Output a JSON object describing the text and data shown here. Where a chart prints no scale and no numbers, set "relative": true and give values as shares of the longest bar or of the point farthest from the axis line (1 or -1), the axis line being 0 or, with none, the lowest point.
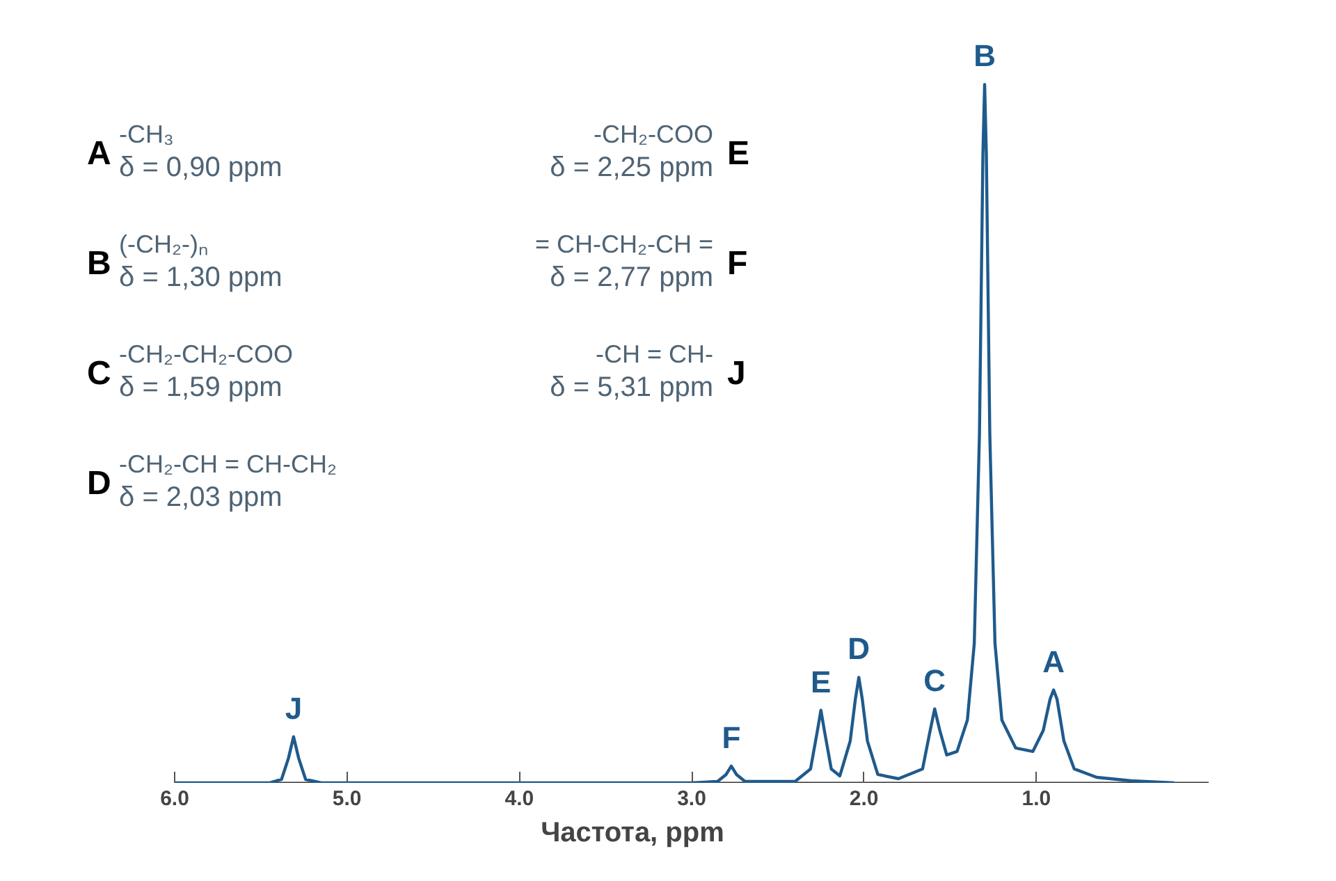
{
  "chart_data": {
    "type": "line",
    "relative": true,
    "xlabel": "Частота, ppm",
    "xlim": [
      6.0,
      0.0
    ],
    "xticks": [
      {
        "value": 6,
        "label": "6.0"
      },
      {
        "value": 5,
        "label": "5.0"
      },
      {
        "value": 4,
        "label": "4.0"
      },
      {
        "value": 3,
        "label": "3.0"
      },
      {
        "value": 2,
        "label": "2.0"
      },
      {
        "value": 1,
        "label": "1.0"
      }
    ],
    "grid": false,
    "marker": "none",
    "line_style": "solid",
    "series": [
      {
        "color": "#1f5a8c",
        "x": [
          6.0,
          5.45,
          5.38,
          5.34,
          5.31,
          5.28,
          5.24,
          5.15,
          3.0,
          2.85,
          2.8,
          2.77,
          2.74,
          2.69,
          2.4,
          2.31,
          2.27,
          2.25,
          2.23,
          2.19,
          2.14,
          2.08,
          2.05,
          2.03,
          2.01,
          1.98,
          1.92,
          1.8,
          1.66,
          1.62,
          1.59,
          1.56,
          1.52,
          1.46,
          1.4,
          1.36,
          1.33,
          1.31,
          1.3,
          1.29,
          1.27,
          1.24,
          1.2,
          1.12,
          1.02,
          0.96,
          0.92,
          0.9,
          0.88,
          0.84,
          0.78,
          0.65,
          0.45,
          0.2
        ],
        "values": [
          0,
          0,
          0.005,
          0.035,
          0.066,
          0.035,
          0.005,
          0,
          0,
          0.002,
          0.012,
          0.024,
          0.012,
          0.002,
          0.002,
          0.02,
          0.075,
          0.104,
          0.075,
          0.02,
          0.01,
          0.06,
          0.12,
          0.151,
          0.12,
          0.06,
          0.012,
          0.006,
          0.02,
          0.07,
          0.106,
          0.075,
          0.04,
          0.045,
          0.09,
          0.2,
          0.5,
          0.9,
          1.0,
          0.9,
          0.5,
          0.2,
          0.09,
          0.05,
          0.045,
          0.075,
          0.12,
          0.133,
          0.12,
          0.06,
          0.02,
          0.008,
          0.003,
          0
        ]
      }
    ],
    "annotations": [
      {
        "text": "J",
        "x": 5.31,
        "y": 0.066
      },
      {
        "text": "F",
        "x": 2.77,
        "y": 0.024
      },
      {
        "text": "E",
        "x": 2.25,
        "y": 0.104
      },
      {
        "text": "D",
        "x": 2.03,
        "y": 0.151
      },
      {
        "text": "C",
        "x": 1.59,
        "y": 0.106
      },
      {
        "text": "B",
        "x": 1.3,
        "y": 1.0
      },
      {
        "text": "A",
        "x": 0.9,
        "y": 0.133
      },
      "A",
      "-CH₃",
      "δ = 0,90 ppm",
      "B",
      "(-CH₂-)ₙ",
      "δ = 1,30 ppm",
      "C",
      "-CH₂-CH₂-COO",
      "δ = 1,59 ppm",
      "D",
      "-CH₂-CH = CH-CH₂",
      "δ = 2,03 ppm",
      "E",
      "-CH₂-COO",
      "δ = 2,25 ppm",
      "F",
      "= CH-CH₂-CH =",
      "δ = 2,77 ppm",
      "J",
      "-CH = CH-",
      "δ = 5,31 ppm"
    ]
  }
}
